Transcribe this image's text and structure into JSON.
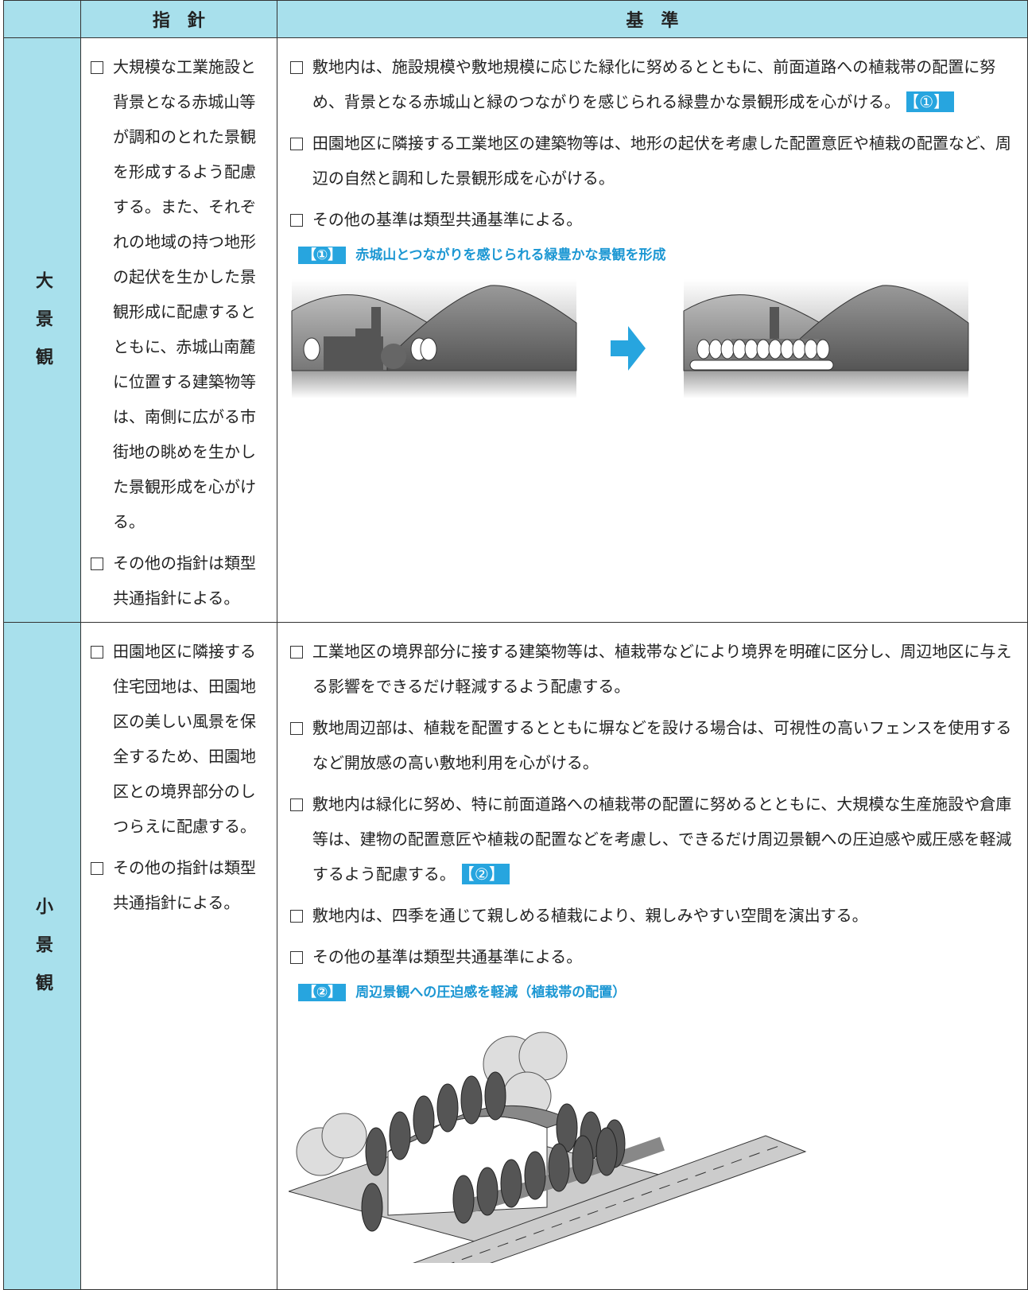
{
  "header": {
    "guideline": "指　針",
    "standard": "基　準"
  },
  "rows": [
    {
      "label": "大景観",
      "guidelines": [
        "大規模な工業施設と背景となる赤城山等が調和のとれた景観を形成するよう配慮する。また、それぞれの地域の持つ地形の起伏を生かした景観形成に配慮するとともに、赤城山南麓に位置する建築物等は、南側に広がる市街地の眺めを生かした景観形成を心がける。",
        "その他の指針は類型共通指針による。"
      ],
      "standards": [
        {
          "text": "敷地内は、施設規模や敷地規模に応じた緑化に努めるとともに、前面道路への植栽帯の配置に努め、背景となる赤城山と緑のつながりを感じられる緑豊かな景観形成を心がける。",
          "tag": "【①】"
        },
        {
          "text": "田園地区に隣接する工業地区の建築物等は、地形の起伏を考慮した配置意匠や植栽の配置など、周辺の自然と調和した景観形成を心がける。"
        },
        {
          "text": "その他の基準は類型共通基準による。"
        }
      ],
      "figure": {
        "tag": "【①】",
        "caption": "赤城山とつながりを感じられる緑豊かな景観を形成"
      }
    },
    {
      "label": "小景観",
      "guidelines": [
        "田園地区に隣接する住宅団地は、田園地区の美しい風景を保全するため、田園地区との境界部分のしつらえに配慮する。",
        "その他の指針は類型共通指針による。"
      ],
      "standards": [
        {
          "text": "工業地区の境界部分に接する建築物等は、植栽帯などにより境界を明確に区分し、周辺地区に与える影響をできるだけ軽減するよう配慮する。"
        },
        {
          "text": "敷地周辺部は、植栽を配置するとともに塀などを設ける場合は、可視性の高いフェンスを使用するなど開放感の高い敷地利用を心がける。"
        },
        {
          "text": "敷地内は緑化に努め、特に前面道路への植栽帯の配置に努めるとともに、大規模な生産施設や倉庫等は、建物の配置意匠や植栽の配置などを考慮し、できるだけ周辺景観への圧迫感や威圧感を軽減するよう配慮する。",
          "tag": "【②】"
        },
        {
          "text": "敷地内は、四季を通じて親しめる植栽により、親しみやすい空間を演出する。"
        },
        {
          "text": "その他の基準は類型共通基準による。"
        }
      ],
      "figure": {
        "tag": "【②】",
        "caption": "周辺景観への圧迫感を軽減（植栽帯の配置）"
      }
    }
  ]
}
